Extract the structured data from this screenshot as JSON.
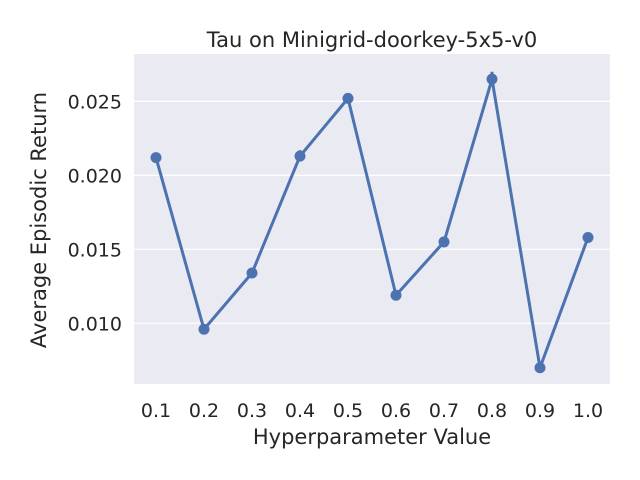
{
  "chart_data": {
    "type": "line",
    "title": "Tau on Minigrid-doorkey-5x5-v0",
    "xlabel": "Hyperparameter Value",
    "ylabel": "Average Episodic Return",
    "categories": [
      "0.1",
      "0.2",
      "0.3",
      "0.4",
      "0.5",
      "0.6",
      "0.7",
      "0.8",
      "0.9",
      "1.0"
    ],
    "series": [
      {
        "values": [
          0.0212,
          0.0096,
          0.0134,
          0.0213,
          0.0252,
          0.0119,
          0.0155,
          0.0265,
          0.007,
          0.0158
        ],
        "error_low": [
          0.021,
          0.0095,
          0.0133,
          0.021,
          0.025,
          0.0118,
          0.0154,
          0.0262,
          0.0069,
          0.0156
        ],
        "error_high": [
          0.0215,
          0.0097,
          0.0135,
          0.0217,
          0.0255,
          0.012,
          0.0156,
          0.027,
          0.0071,
          0.016
        ]
      }
    ],
    "yticks": [
      0.01,
      0.015,
      0.02,
      0.025
    ],
    "ytick_labels": [
      "0.010",
      "0.015",
      "0.020",
      "0.025"
    ],
    "ylim": [
      0.0059,
      0.0282
    ],
    "grid": true,
    "colors": {
      "line": "#4c72b0",
      "background": "#eaeaf2",
      "grid": "#ffffff"
    }
  }
}
